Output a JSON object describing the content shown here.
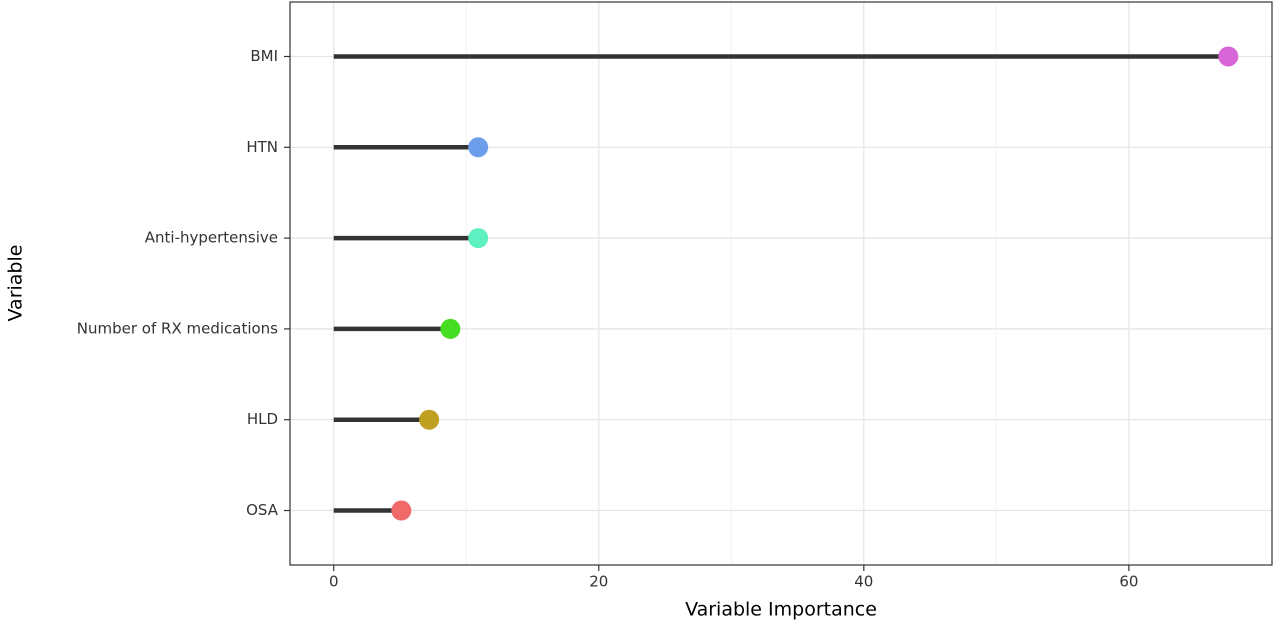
{
  "chart_data": {
    "type": "lollipop",
    "xlabel": "Variable Importance",
    "ylabel": "Variable",
    "categories": [
      "BMI",
      "HTN",
      "Anti-hypertensive",
      "Number of RX medications",
      "HLD",
      "OSA"
    ],
    "values": [
      67.5,
      10.9,
      10.9,
      8.8,
      7.2,
      5.1
    ],
    "colors": [
      "#d966d9",
      "#6d9eeb",
      "#5ef0c0",
      "#44dd22",
      "#c0a020",
      "#f06a6a"
    ],
    "stem_color": "#333333",
    "xlim": [
      -3.3,
      70.8
    ],
    "xticks": [
      0,
      20,
      40,
      60
    ],
    "minor_xticks": [
      10,
      30,
      50
    ],
    "grid": true
  }
}
